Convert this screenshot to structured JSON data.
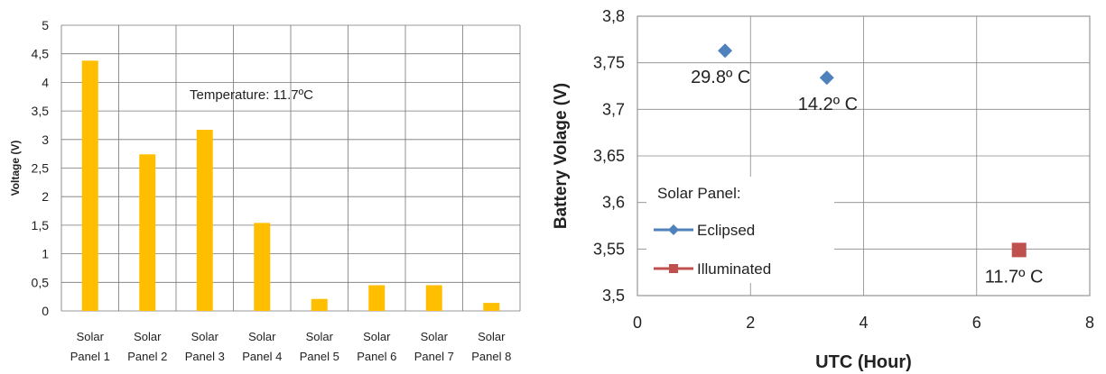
{
  "colors": {
    "bar": "#ffbf00",
    "grid": "#555555",
    "eclipsed": "#4f81bd",
    "illuminated": "#c0504d"
  },
  "chart_data": [
    {
      "type": "bar",
      "categories": [
        [
          "Solar",
          "Panel 1"
        ],
        [
          "Solar",
          "Panel 2"
        ],
        [
          "Solar",
          "Panel 3"
        ],
        [
          "Solar",
          "Panel 4"
        ],
        [
          "Solar",
          "Panel 5"
        ],
        [
          "Solar",
          "Panel 6"
        ],
        [
          "Solar",
          "Panel 7"
        ],
        [
          "Solar",
          "Panel 8"
        ]
      ],
      "values": [
        4.38,
        2.74,
        3.17,
        1.54,
        0.21,
        0.45,
        0.45,
        0.14
      ],
      "ylabel": "Voltage (V)",
      "ylim": [
        0,
        5
      ],
      "yticks": [
        "0",
        "0,5",
        "1",
        "1,5",
        "2",
        "2,5",
        "3",
        "3,5",
        "4",
        "4,5",
        "5"
      ],
      "annotation": "Temperature: 11.7ºC",
      "grid": true
    },
    {
      "type": "scatter",
      "xlabel": "UTC (Hour)",
      "ylabel": "Battery Volage (V)",
      "xlim": [
        0,
        8
      ],
      "ylim": [
        3.5,
        3.8
      ],
      "xticks": [
        "0",
        "2",
        "4",
        "6",
        "8"
      ],
      "yticks": [
        "3,5",
        "3,55",
        "3,6",
        "3,65",
        "3,7",
        "3,75",
        "3,8"
      ],
      "legend_title": "Solar Panel:",
      "legend_position": "bottom-left",
      "grid": true,
      "series": [
        {
          "name": "Eclipsed",
          "marker": "diamond",
          "points": [
            {
              "x": 1.55,
              "y": 3.763,
              "label": "29.8º C"
            },
            {
              "x": 3.35,
              "y": 3.734,
              "label": "14.2º C"
            }
          ]
        },
        {
          "name": "Illuminated",
          "marker": "square",
          "points": [
            {
              "x": 6.75,
              "y": 3.549,
              "label": "11.7º C"
            }
          ]
        }
      ]
    }
  ]
}
